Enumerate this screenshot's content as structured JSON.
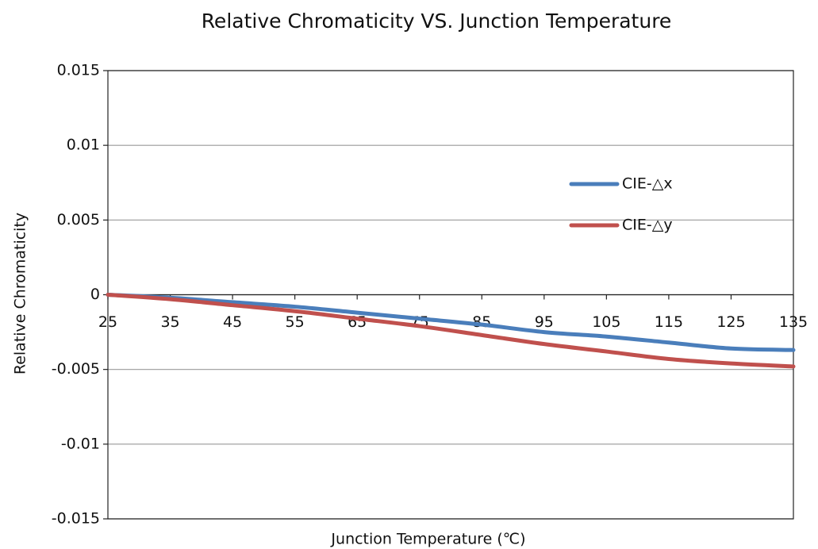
{
  "chart_data": {
    "type": "line",
    "title": "Relative Chromaticity VS. Junction Temperature",
    "x_label": "Junction Temperature (℃)",
    "y_label": "Relative Chromaticity",
    "x": [
      25,
      35,
      45,
      55,
      65,
      75,
      85,
      95,
      105,
      115,
      125,
      135
    ],
    "series": [
      {
        "name": "CIE-△x",
        "color": "#4a7ebb",
        "values": [
          0,
          -0.0002,
          -0.0005,
          -0.0008,
          -0.0012,
          -0.0016,
          -0.002,
          -0.0025,
          -0.0028,
          -0.0032,
          -0.0036,
          -0.0037
        ]
      },
      {
        "name": "CIE-△y",
        "color": "#c0504d",
        "values": [
          0,
          -0.0003,
          -0.0007,
          -0.0011,
          -0.0016,
          -0.0021,
          -0.0027,
          -0.0033,
          -0.0038,
          -0.0043,
          -0.0046,
          -0.0048
        ]
      }
    ],
    "xlim": [
      25,
      135
    ],
    "xticks": [
      25,
      35,
      45,
      55,
      65,
      75,
      85,
      95,
      105,
      115,
      125,
      135
    ],
    "ylim": [
      -0.015,
      0.015
    ],
    "yticks": [
      0.015,
      0.01,
      0.005,
      0,
      -0.005,
      -0.01,
      -0.015
    ],
    "grid": true,
    "legend": "right"
  }
}
